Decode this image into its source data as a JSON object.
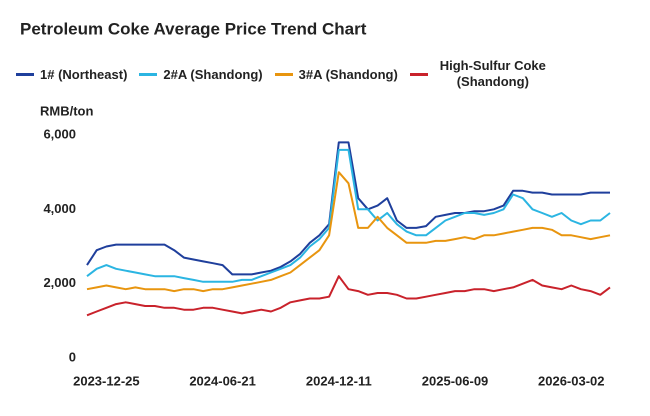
{
  "chart_data": {
    "type": "line",
    "title": "Petroleum Coke Average Price Trend Chart",
    "y_label": "RMB/ton",
    "categories": [
      null,
      null,
      "2023-12-25",
      null,
      null,
      null,
      null,
      null,
      null,
      null,
      null,
      null,
      null,
      null,
      "2024-06-21",
      null,
      null,
      null,
      null,
      null,
      null,
      null,
      null,
      null,
      null,
      null,
      "2024-12-11",
      null,
      null,
      null,
      null,
      null,
      null,
      null,
      null,
      null,
      null,
      null,
      "2025-06-09",
      null,
      null,
      null,
      null,
      null,
      null,
      null,
      null,
      null,
      null,
      null,
      "2026-03-02",
      null,
      null,
      null,
      null
    ],
    "series": [
      {
        "name": "1# (Northeast)",
        "color": "#1f3f9c",
        "values": [
          2500,
          2900,
          3000,
          3050,
          3050,
          3050,
          3050,
          3050,
          3050,
          2900,
          2700,
          2650,
          2600,
          2550,
          2500,
          2250,
          2250,
          2250,
          2300,
          2350,
          2450,
          2600,
          2800,
          3100,
          3300,
          3600,
          5800,
          5800,
          4300,
          4000,
          4100,
          4300,
          3700,
          3500,
          3500,
          3550,
          3800,
          3850,
          3900,
          3900,
          3950,
          3950,
          4000,
          4100,
          4500,
          4500,
          4450,
          4450,
          4400,
          4400,
          4400,
          4400,
          4450,
          4450,
          4450
        ]
      },
      {
        "name": "2#A (Shandong)",
        "color": "#2bb5e2",
        "values": [
          2200,
          2400,
          2500,
          2400,
          2350,
          2300,
          2250,
          2200,
          2200,
          2200,
          2150,
          2100,
          2050,
          2050,
          2050,
          2050,
          2100,
          2100,
          2200,
          2300,
          2400,
          2500,
          2700,
          3000,
          3200,
          3500,
          5600,
          5600,
          4000,
          4000,
          3700,
          3900,
          3600,
          3400,
          3300,
          3300,
          3500,
          3700,
          3800,
          3900,
          3900,
          3850,
          3900,
          4000,
          4400,
          4300,
          4000,
          3900,
          3800,
          3900,
          3700,
          3600,
          3700,
          3700,
          3900
        ]
      },
      {
        "name": "3#A (Shandong)",
        "color": "#e8950f",
        "values": [
          1850,
          1900,
          1950,
          1900,
          1850,
          1900,
          1850,
          1850,
          1850,
          1800,
          1850,
          1850,
          1800,
          1850,
          1850,
          1900,
          1950,
          2000,
          2050,
          2100,
          2200,
          2300,
          2500,
          2700,
          2900,
          3300,
          5000,
          4700,
          3500,
          3500,
          3800,
          3500,
          3300,
          3100,
          3100,
          3100,
          3150,
          3150,
          3200,
          3250,
          3200,
          3300,
          3300,
          3350,
          3400,
          3450,
          3500,
          3500,
          3450,
          3300,
          3300,
          3250,
          3200,
          3250,
          3300
        ]
      },
      {
        "name": "High-Sulfur Coke (Shandong)",
        "color": "#c9222b",
        "values": [
          1150,
          1250,
          1350,
          1450,
          1500,
          1450,
          1400,
          1400,
          1350,
          1350,
          1300,
          1300,
          1350,
          1350,
          1300,
          1250,
          1200,
          1250,
          1300,
          1250,
          1350,
          1500,
          1550,
          1600,
          1600,
          1650,
          2200,
          1850,
          1800,
          1700,
          1750,
          1750,
          1700,
          1600,
          1600,
          1650,
          1700,
          1750,
          1800,
          1800,
          1850,
          1850,
          1800,
          1850,
          1900,
          2000,
          2100,
          1950,
          1900,
          1850,
          1950,
          1850,
          1800,
          1700,
          1900
        ]
      }
    ],
    "ylim": [
      0,
      6000
    ],
    "yticks": [
      0,
      {
        "value": 2000,
        "label": "2,000"
      },
      {
        "value": 4000,
        "label": "4,000"
      },
      {
        "value": 6000,
        "label": "6,000"
      }
    ],
    "grid": false
  }
}
